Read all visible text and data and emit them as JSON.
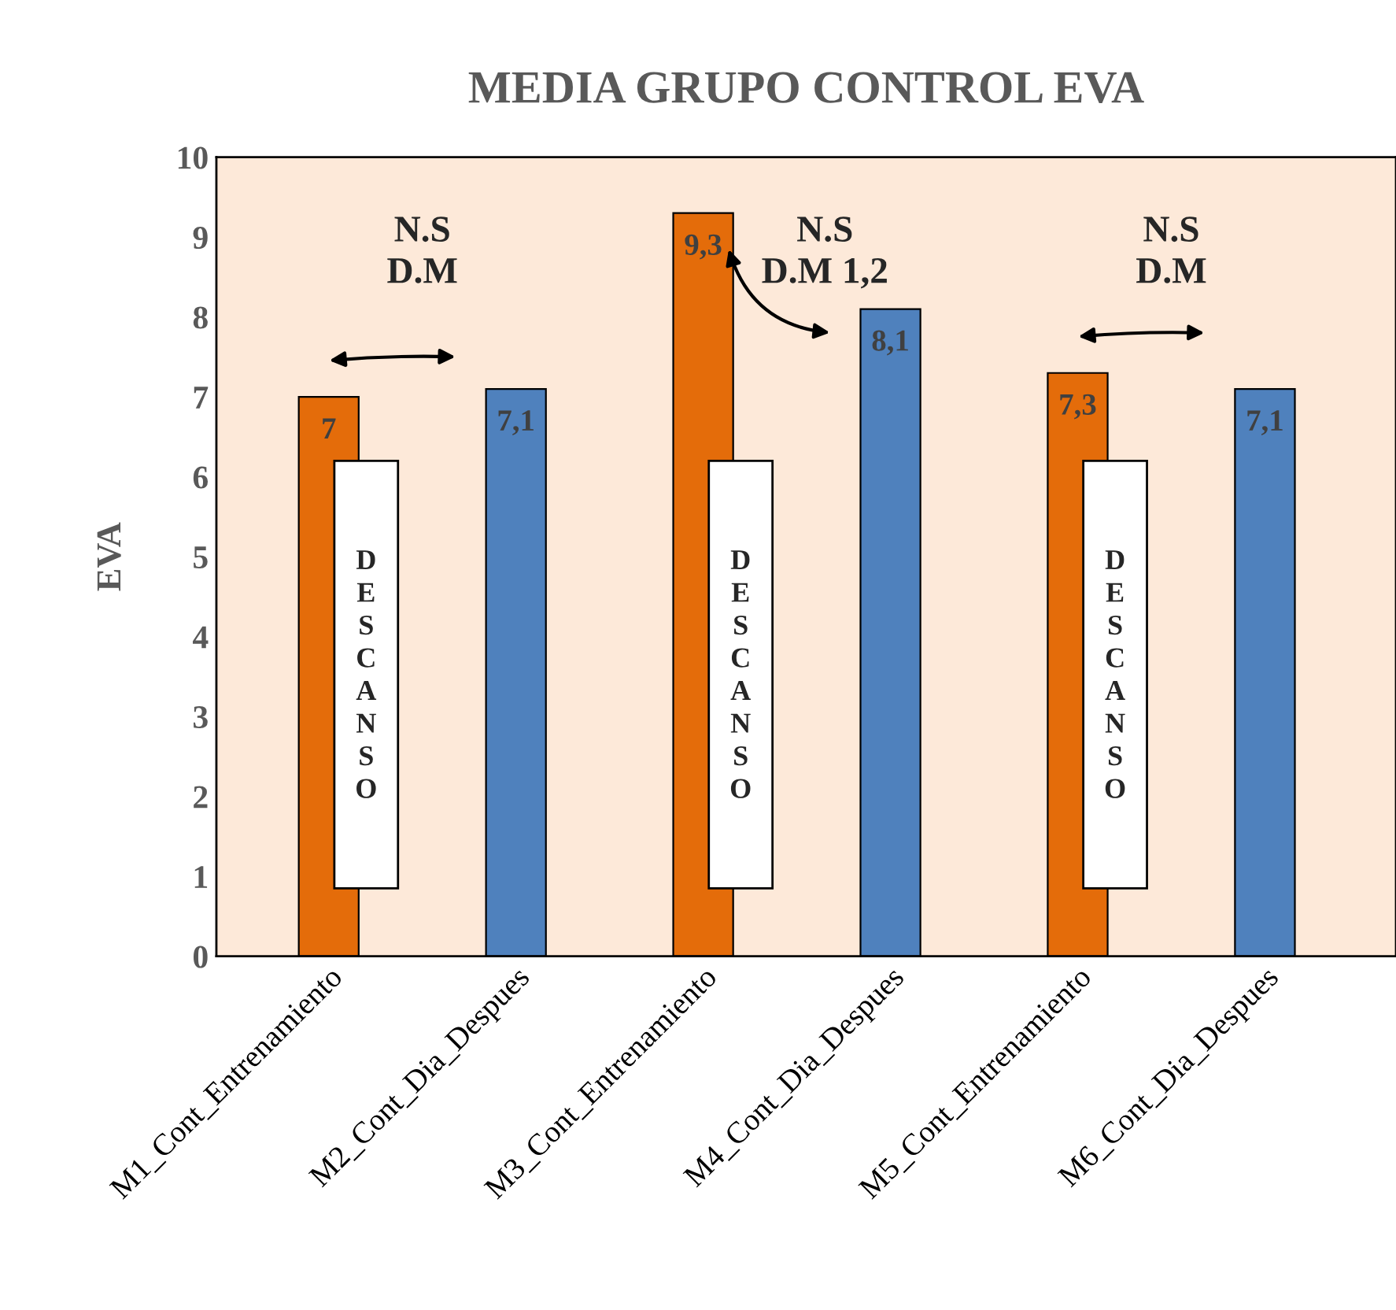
{
  "chart_data": {
    "type": "bar",
    "title": "MEDIA GRUPO CONTROL EVA",
    "ylabel": "EVA",
    "categories": [
      "M1_Cont_Entrenamiento",
      "M2_Cont_Dia_Despues",
      "M3_Cont_Entrenamiento",
      "M4_Cont_Dia_Despues",
      "M5_Cont_Entrenamiento",
      "M6_Cont_Dia_Despues"
    ],
    "values": [
      7,
      7.1,
      9.3,
      8.1,
      7.3,
      7.1
    ],
    "colors": [
      "#e46c0a",
      "#4f81bd",
      "#e46c0a",
      "#4f81bd",
      "#e46c0a",
      "#4f81bd"
    ],
    "value_labels": [
      "7",
      "7,1",
      "9,3",
      "8,1",
      "7,3",
      "7,1"
    ],
    "ylim": [
      0,
      10
    ],
    "yticks": [
      0,
      1,
      2,
      3,
      4,
      5,
      6,
      7,
      8,
      9,
      10
    ],
    "grid": false,
    "annotations": [
      "N.S\nD.M",
      "N.S\nD.M 1,2",
      "N.S\nD.M",
      "DESCANSO",
      "DESCANSO",
      "DESCANSO"
    ]
  }
}
